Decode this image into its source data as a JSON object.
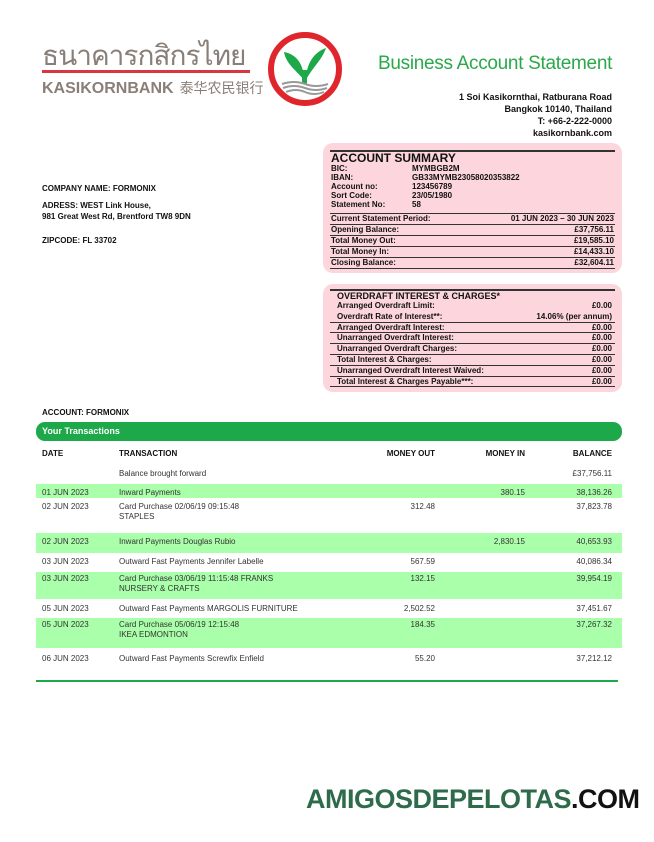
{
  "logo": {
    "thai": "ธนาคารกสิกรไทย",
    "english": "KASIKORNBANK",
    "chinese": "泰华农民银行"
  },
  "header": {
    "title": "Business Account Statement",
    "address": [
      "1 Soi Kasikornthai, Ratburana Road",
      "Bangkok 10140, Thailand",
      "T: +66-2-222-0000",
      "kasikornbank.com"
    ]
  },
  "company": {
    "name": "COMPANY NAME: FORMONIX",
    "address1": "ADRESS: WEST Link House,",
    "address2": "981 Great West Rd, Brentford TW8 9DN",
    "zipcode": "ZIPCODE: FL 33702"
  },
  "summary": {
    "title": "ACCOUNT SUMMARY",
    "details": [
      [
        "BIC:",
        "MYMBGB2M"
      ],
      [
        "IBAN:",
        "GB33MYMB23058020353822"
      ],
      [
        "Account no:",
        "123456789"
      ],
      [
        "Sort Code:",
        "23/05/1980"
      ],
      [
        "Statement No:",
        "58"
      ]
    ],
    "totals": [
      [
        "Current Statement Period:",
        "01 JUN 2023 – 30 JUN 2023"
      ],
      [
        "Opening Balance:",
        "£37,756.11"
      ],
      [
        "Total Money Out:",
        "£19,585.10"
      ],
      [
        "Total Money In:",
        "£14,433.10"
      ],
      [
        "Closing Balance:",
        "£32,604.11"
      ]
    ]
  },
  "overdraft": {
    "title": "OVERDRAFT INTEREST & CHARGES*",
    "items": [
      [
        "Arranged Overdraft Limit:",
        "£0.00"
      ],
      [
        "Overdraft Rate of Interest**:",
        "14.06% (per annum)"
      ],
      [
        "Arranged Overdraft Interest:",
        "£0.00"
      ],
      [
        "Unarranged Overdraft Interest:",
        "£0.00"
      ],
      [
        "Unarranged Overdraft Charges:",
        "£0.00"
      ],
      [
        "Total Interest & Charges:",
        "£0.00"
      ],
      [
        "Unarranged Overdraft Interest Waived:",
        "£0.00"
      ],
      [
        "Total Interest & Charges Payable***:",
        "£0.00"
      ]
    ]
  },
  "account": {
    "label": "ACCOUNT:",
    "name": "FORMONIX"
  },
  "transactions": {
    "title": "Your Transactions",
    "columns": [
      "DATE",
      "TRANSACTION",
      "MONEY OUT",
      "MONEY IN",
      "BALANCE"
    ],
    "rows": [
      {
        "date": "",
        "desc": "Balance brought forward",
        "desc2": "",
        "out": "",
        "in": "",
        "bal": "£37,756.11",
        "hl": false
      },
      {
        "date": "01 JUN 2023",
        "desc": "Inward Payments",
        "desc2": "",
        "out": "",
        "in": "380.15",
        "bal": "38,136.26",
        "hl": true
      },
      {
        "date": "02 JUN 2023",
        "desc": "Card Purchase 02/06/19 09:15:48",
        "desc2": "STAPLES",
        "out": "312.48",
        "in": "",
        "bal": "37,823.78",
        "hl": false
      },
      {
        "date": "02 JUN 2023",
        "desc": "Inward Payments Douglas Rubio",
        "desc2": "",
        "out": "",
        "in": "2,830.15",
        "bal": "40,653.93",
        "hl": true
      },
      {
        "date": "03 JUN 2023",
        "desc": "Outward Fast Payments Jennifer Labelle",
        "desc2": "",
        "out": "567.59",
        "in": "",
        "bal": "40,086.34",
        "hl": false
      },
      {
        "date": "03 JUN 2023",
        "desc": "Card Purchase 03/06/19 11:15:48 FRANKS",
        "desc2": "NURSERY & CRAFTS",
        "out": "132.15",
        "in": "",
        "bal": "39,954.19",
        "hl": true
      },
      {
        "date": "05 JUN 2023",
        "desc": "Outward Fast Payments MARGOLIS FURNITURE",
        "desc2": "",
        "out": "2,502.52",
        "in": "",
        "bal": "37,451.67",
        "hl": false
      },
      {
        "date": "05 JUN 2023",
        "desc": "Card Purchase 05/06/19 12:15:48",
        "desc2": "IKEA EDMONTION",
        "out": "184.35",
        "in": "",
        "bal": "37,267.32",
        "hl": true
      },
      {
        "date": "06 JUN 2023",
        "desc": "Outward Fast Payments Screwfix Enfield",
        "desc2": "",
        "out": "55.20",
        "in": "",
        "bal": "37,212.12",
        "hl": false
      }
    ]
  },
  "watermark": {
    "main": "AMIGOSDEPELOTAS",
    "suffix": ".COM"
  },
  "colors": {
    "brand_green": "#1da84a",
    "highlight": "#aaffaa",
    "summary_bg": "#fcd6dc",
    "logo_red": "#d9363e"
  }
}
